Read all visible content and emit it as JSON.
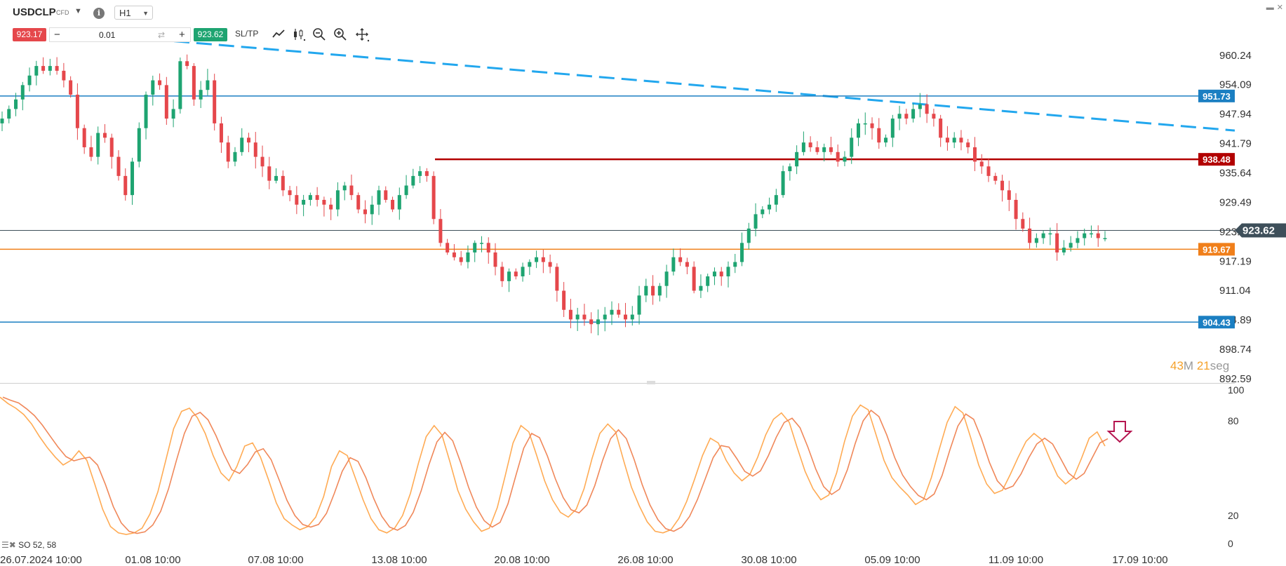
{
  "toolbar": {
    "symbol": "USDCLP",
    "instrument_type": "CFD",
    "timeframe": "H1",
    "sell_price": "923.17",
    "lot": "0.01",
    "buy_price": "923.62",
    "sltp_label": "SL/TP",
    "icons": [
      "line-chart-icon",
      "candles-icon",
      "zoom-out-icon",
      "zoom-in-icon",
      "move-icon"
    ]
  },
  "countdown": {
    "minutes": "43",
    "m": "M",
    "seconds": "21",
    "seg": "seg"
  },
  "oscillator": {
    "label": "SO 52, 58",
    "levels": [
      "100",
      "80",
      "20",
      "0"
    ]
  },
  "colors": {
    "bull": "#1ea471",
    "bear": "#e5474b",
    "resistance": "#b20000",
    "support": "#f07f1a",
    "blue_level": "#1b7fc2",
    "trend": "#22a7ee",
    "current": "#3e4f5a",
    "so_k": "#ffab54",
    "so_d": "#f0885a"
  },
  "chart_data": {
    "type": "candlestick",
    "symbol": "USDCLP",
    "timeframe": "H1",
    "x_tick_labels": [
      "26.07.2024 10:00",
      "01.08 10:00",
      "07.08 10:00",
      "13.08 10:00",
      "20.08 10:00",
      "26.08 10:00",
      "30.08 10:00",
      "05.09 10:00",
      "11.09 10:00",
      "17.09 10:00"
    ],
    "y_tick_labels": [
      "960.24",
      "954.09",
      "947.94",
      "941.79",
      "935.64",
      "929.49",
      "923.34",
      "917.19",
      "911.04",
      "904.89",
      "898.74",
      "892.59"
    ],
    "ylim": [
      892.59,
      963
    ],
    "closes": [
      947,
      949,
      951,
      954,
      956,
      958,
      957,
      958,
      957,
      955,
      952,
      945,
      941,
      939,
      944,
      943,
      939,
      935,
      931,
      938,
      945,
      952,
      955,
      954,
      947,
      949,
      959,
      958,
      951,
      953,
      955,
      946,
      942,
      938,
      940,
      943,
      942,
      939,
      937,
      934,
      935,
      932,
      931,
      929,
      930,
      931,
      930,
      929,
      928,
      932,
      933,
      931,
      928,
      927,
      929,
      932,
      930,
      928,
      931,
      933,
      935,
      936,
      935,
      926,
      921,
      919,
      918,
      917,
      919,
      921,
      921,
      919,
      916,
      913,
      915,
      914,
      916,
      917,
      918,
      917,
      916,
      911,
      907,
      905,
      906,
      905,
      904,
      905,
      906,
      907,
      906,
      905,
      906,
      910,
      912,
      910,
      912,
      915,
      918,
      917,
      916,
      911,
      912,
      914,
      915,
      914,
      916,
      917,
      921,
      924,
      927,
      928,
      929,
      931,
      936,
      937,
      940,
      942,
      941,
      940,
      941,
      940,
      938,
      939,
      943,
      946,
      946,
      945,
      942,
      943,
      947,
      948,
      947,
      949,
      950,
      948,
      947,
      943,
      942,
      943,
      942,
      941,
      938,
      937,
      935,
      934,
      932,
      930,
      926,
      924,
      921,
      922,
      923,
      923,
      919,
      920,
      921,
      922,
      923,
      923,
      922,
      922
    ],
    "levels": [
      {
        "price": "951.73",
        "role": "resistance-blue"
      },
      {
        "price": "938.48",
        "role": "resistance"
      },
      {
        "price": "923.62",
        "role": "current"
      },
      {
        "price": "919.67",
        "role": "support"
      },
      {
        "price": "904.43",
        "role": "support-blue"
      }
    ],
    "trendline": {
      "from_price": 963.2,
      "to_price": 944.5
    },
    "stochastic": {
      "k": [
        95,
        91,
        88,
        84,
        78,
        70,
        63,
        57,
        52,
        55,
        61,
        55,
        40,
        24,
        13,
        9,
        8,
        9,
        12,
        21,
        35,
        55,
        75,
        86,
        88,
        82,
        72,
        58,
        47,
        42,
        51,
        64,
        66,
        57,
        43,
        28,
        18,
        14,
        11,
        13,
        19,
        32,
        51,
        61,
        58,
        44,
        30,
        18,
        11,
        9,
        12,
        20,
        34,
        53,
        70,
        77,
        71,
        54,
        36,
        24,
        16,
        10,
        12,
        25,
        45,
        66,
        77,
        73,
        58,
        42,
        30,
        22,
        19,
        24,
        37,
        56,
        72,
        78,
        73,
        55,
        38,
        26,
        16,
        10,
        9,
        11,
        18,
        29,
        43,
        58,
        69,
        66,
        55,
        47,
        42,
        46,
        57,
        71,
        81,
        85,
        79,
        63,
        48,
        37,
        30,
        33,
        47,
        67,
        83,
        90,
        87,
        71,
        55,
        44,
        38,
        33,
        27,
        30,
        44,
        62,
        79,
        89,
        85,
        69,
        52,
        40,
        34,
        36,
        46,
        57,
        67,
        72,
        68,
        56,
        45,
        40,
        44,
        56,
        69,
        73,
        64
      ]
    }
  }
}
